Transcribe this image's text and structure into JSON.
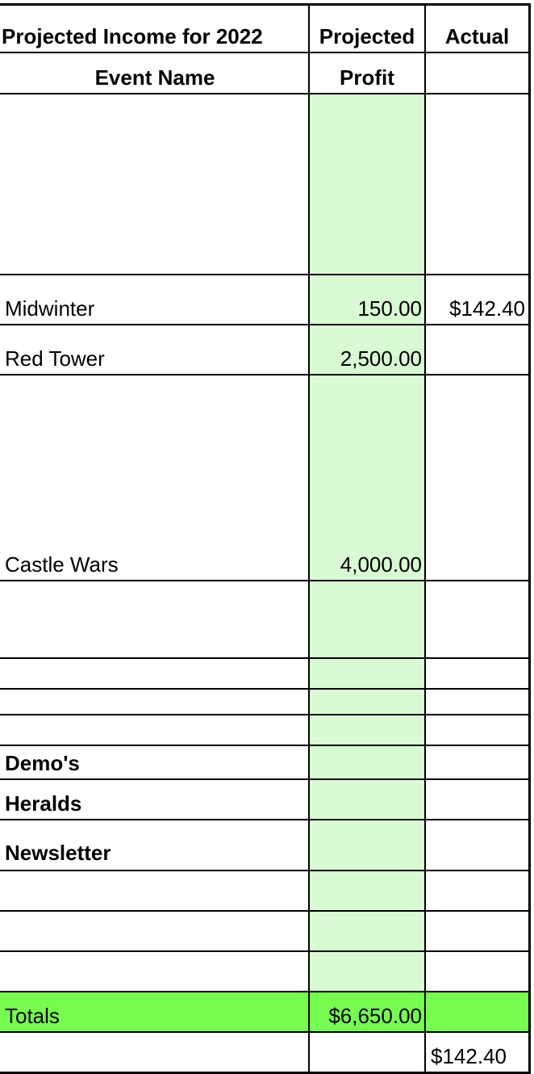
{
  "header": {
    "title": "Projected Income for  2022",
    "col2_line1": "Projected",
    "col3_line1": "Actual",
    "col1_line2": "Event Name",
    "col2_line2": "Profit",
    "col3_line2": ""
  },
  "rows": [
    {
      "event": "",
      "projected": "",
      "actual": ""
    },
    {
      "event": "Midwinter",
      "projected": "150.00",
      "actual": "$142.40"
    },
    {
      "event": "Red Tower",
      "projected": "2,500.00",
      "actual": ""
    },
    {
      "event": "Castle Wars",
      "projected": "4,000.00",
      "actual": ""
    },
    {
      "event": "",
      "projected": "",
      "actual": ""
    },
    {
      "event": "",
      "projected": "",
      "actual": ""
    },
    {
      "event": "",
      "projected": "",
      "actual": ""
    },
    {
      "event": "",
      "projected": "",
      "actual": ""
    },
    {
      "event": "Demo's",
      "projected": "",
      "actual": ""
    },
    {
      "event": "Heralds",
      "projected": "",
      "actual": ""
    },
    {
      "event": "Newsletter",
      "projected": "",
      "actual": ""
    },
    {
      "event": "",
      "projected": "",
      "actual": ""
    },
    {
      "event": "",
      "projected": "",
      "actual": ""
    },
    {
      "event": "",
      "projected": "",
      "actual": ""
    }
  ],
  "totals": {
    "label": "Totals",
    "projected": "$6,650.00",
    "actual": ""
  },
  "footer": {
    "actual_total": "$142.40"
  },
  "colors": {
    "projected_column": "#d9fbd3",
    "totals_row": "#76fb4f"
  }
}
